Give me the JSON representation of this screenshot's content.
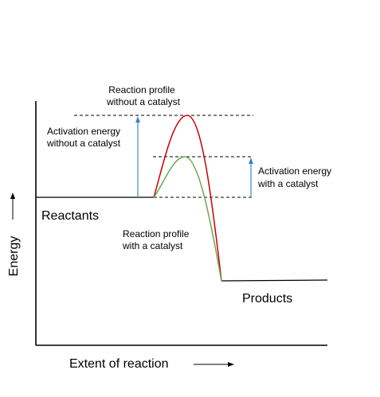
{
  "labels": {
    "red_profile_line1": "Reaction profile",
    "red_profile_line2": "without a catalyst",
    "green_profile_line1": "Reaction profile",
    "green_profile_line2": "with a catalyst",
    "ea_uncat_line1": "Activation energy",
    "ea_uncat_line2": "without a catalyst",
    "ea_cat_line1": "Activation energy",
    "ea_cat_line2": "with a catalyst",
    "reactants": "Reactants",
    "products": "Products",
    "x_axis": "Extent of reaction",
    "y_axis": "Energy"
  },
  "colors": {
    "uncatalysed": "#cc0000",
    "catalysed": "#6aa84f",
    "activation_arrow": "#3d85c6",
    "axis": "#000000",
    "text": "#000000"
  },
  "icons": {
    "x_axis_arrow": "right-arrow-icon",
    "y_axis_arrow": "up-arrow-icon"
  }
}
